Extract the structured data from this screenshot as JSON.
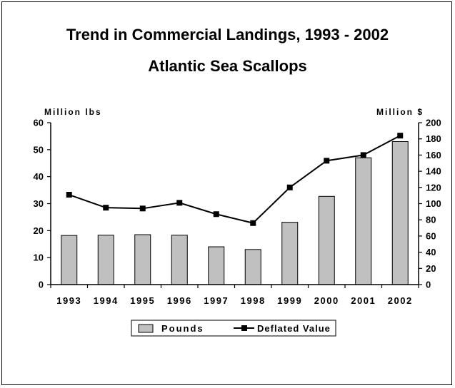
{
  "chart_data": {
    "type": "bar",
    "title": "Trend in Commercial Landings, 1993 - 2002",
    "subtitle": "Atlantic Sea Scallops",
    "ylabel_left": "Million lbs",
    "ylabel_right": "Million $",
    "categories": [
      "1993",
      "1994",
      "1995",
      "1996",
      "1997",
      "1998",
      "1999",
      "2000",
      "2001",
      "2002"
    ],
    "ylim_left": [
      0,
      60
    ],
    "ylim_right": [
      0,
      200
    ],
    "yticks_left": [
      0,
      10,
      20,
      30,
      40,
      50,
      60
    ],
    "yticks_right": [
      0,
      20,
      40,
      60,
      80,
      100,
      120,
      140,
      160,
      180,
      200
    ],
    "grid": false,
    "legend_position": "bottom",
    "series": [
      {
        "name": "Pounds",
        "type": "bar",
        "axis": "left",
        "color": "#c0c0c0",
        "values": [
          18.2,
          18.3,
          18.5,
          18.3,
          14.0,
          13.0,
          23.1,
          32.7,
          47.0,
          53.0
        ]
      },
      {
        "name": "Deflated Value",
        "type": "line",
        "axis": "right",
        "color": "#000000",
        "values": [
          111,
          95,
          94,
          101,
          87,
          76,
          120,
          153,
          160,
          184
        ]
      }
    ]
  }
}
